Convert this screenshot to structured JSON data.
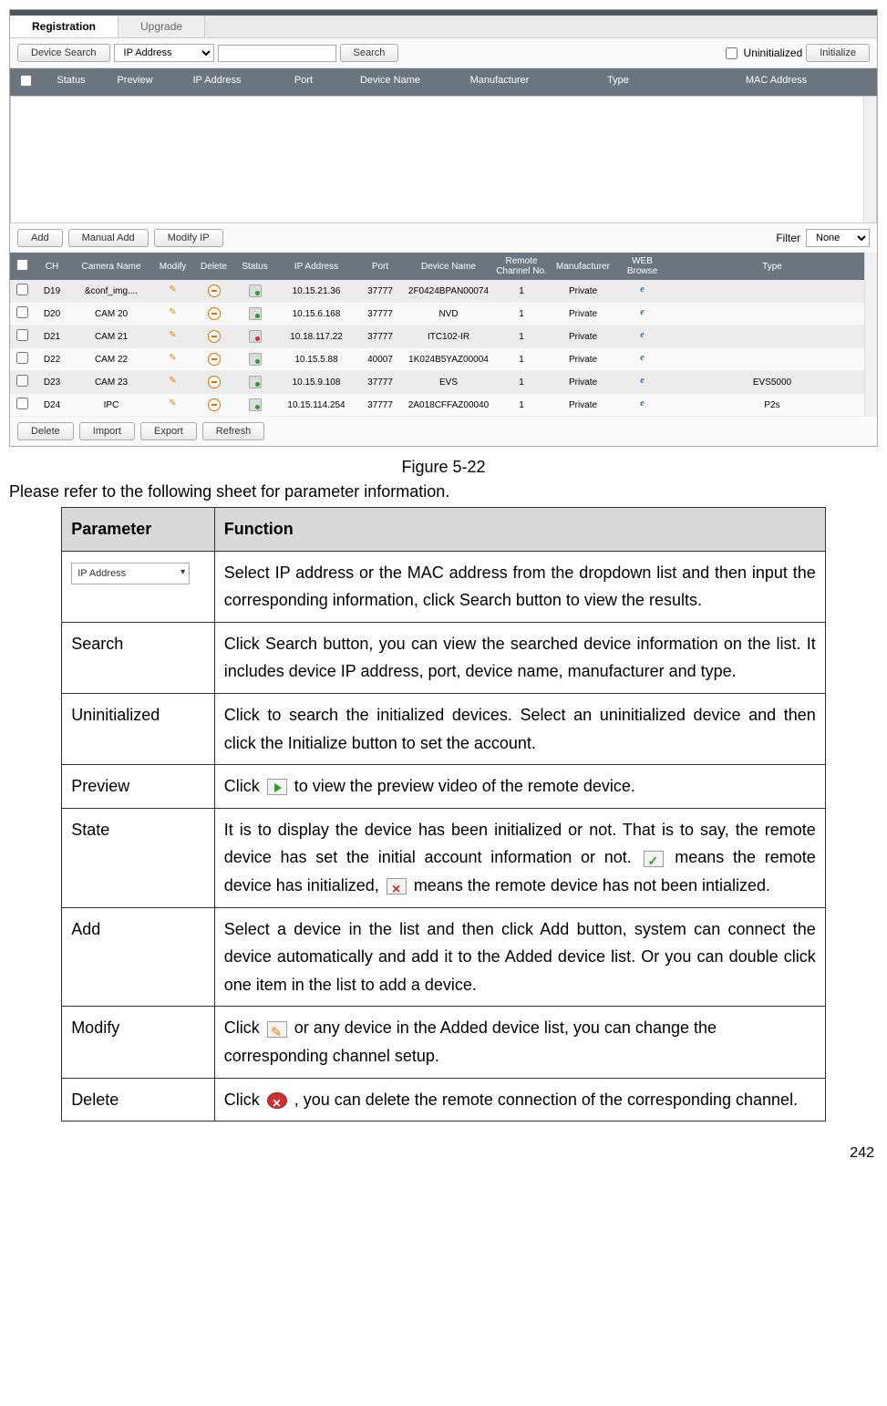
{
  "tabs": {
    "registration": "Registration",
    "upgrade": "Upgrade"
  },
  "toolbar": {
    "device_search": "Device Search",
    "select_value": "IP Address",
    "search": "Search",
    "uninitialized": "Uninitialized",
    "initialize": "Initialize"
  },
  "search_header": {
    "status": "Status",
    "preview": "Preview",
    "ip": "IP Address",
    "port": "Port",
    "device_name": "Device Name",
    "manufacturer": "Manufacturer",
    "type": "Type",
    "mac": "MAC Address"
  },
  "mid": {
    "add": "Add",
    "manual_add": "Manual Add",
    "modify_ip": "Modify IP",
    "filter_label": "Filter",
    "filter_value": "None"
  },
  "added_header": {
    "ch": "CH",
    "camera_name": "Camera Name",
    "modify": "Modify",
    "delete": "Delete",
    "status": "Status",
    "ip": "IP Address",
    "port": "Port",
    "device_name": "Device Name",
    "remote_ch": "Remote Channel No.",
    "manufacturer": "Manufacturer",
    "web": "WEB Browse",
    "type": "Type"
  },
  "added_rows": [
    {
      "ch": "D19",
      "name": "&conf_img....",
      "status": "ok",
      "ip": "10.15.21.36",
      "port": "37777",
      "dev": "2F0424BPAN00074",
      "rch": "1",
      "man": "Private",
      "type": ""
    },
    {
      "ch": "D20",
      "name": "CAM 20",
      "status": "ok",
      "ip": "10.15.6.168",
      "port": "37777",
      "dev": "NVD",
      "rch": "1",
      "man": "Private",
      "type": ""
    },
    {
      "ch": "D21",
      "name": "CAM 21",
      "status": "bad",
      "ip": "10.18.117.22",
      "port": "37777",
      "dev": "ITC102-IR",
      "rch": "1",
      "man": "Private",
      "type": ""
    },
    {
      "ch": "D22",
      "name": "CAM 22",
      "status": "ok",
      "ip": "10.15.5.88",
      "port": "40007",
      "dev": "1K024B5YAZ00004",
      "rch": "1",
      "man": "Private",
      "type": ""
    },
    {
      "ch": "D23",
      "name": "CAM 23",
      "status": "ok",
      "ip": "10.15.9.108",
      "port": "37777",
      "dev": "EVS",
      "rch": "1",
      "man": "Private",
      "type": "EVS5000"
    },
    {
      "ch": "D24",
      "name": "IPC",
      "status": "ok",
      "ip": "10.15.114.254",
      "port": "37777",
      "dev": "2A018CFFAZ00040",
      "rch": "1",
      "man": "Private",
      "type": "P2s"
    }
  ],
  "footer": {
    "delete": "Delete",
    "import": "Import",
    "export": "Export",
    "refresh": "Refresh"
  },
  "figure_caption": "Figure 5-22",
  "intro": "Please refer to the following sheet for parameter information.",
  "ptable": {
    "h1": "Parameter",
    "h2": "Function",
    "row1_select": "IP Address",
    "row1_fn": "Select IP address or the MAC address from the dropdown list and then input the corresponding information, click Search button to view the results.",
    "row2_p": "Search",
    "row2_fn": "Click Search button, you can view the searched device information on the list. It includes device IP address, port, device name, manufacturer and type.",
    "row3_p": "Uninitialized",
    "row3_fn": "Click to search the initialized devices. Select an uninitialized device and then click the Initialize button to set the account.",
    "row4_p": "Preview",
    "row4_fn_a": "Click ",
    "row4_fn_b": " to view the preview video of the remote device.",
    "row5_p": "State",
    "row5_fn_a": "It is to display the device has been initialized or not. That is to say, the remote device has set the initial account information or not. ",
    "row5_fn_b": " means the remote device has initialized, ",
    "row5_fn_c": " means the remote device has not been intialized.",
    "row6_p": "Add",
    "row6_fn": "Select a device in the list and then click Add button, system can connect the device automatically and add it to the Added device list. Or you can double click one item in the list to add a device.",
    "row7_p": "Modify",
    "row7_fn_a": "Click ",
    "row7_fn_b": " or any device in the Added device list, you can change the corresponding channel setup.",
    "row8_p": "Delete",
    "row8_fn_a": "Click ",
    "row8_fn_b": " , you can delete the remote connection of the corresponding channel."
  },
  "page_number": "242"
}
